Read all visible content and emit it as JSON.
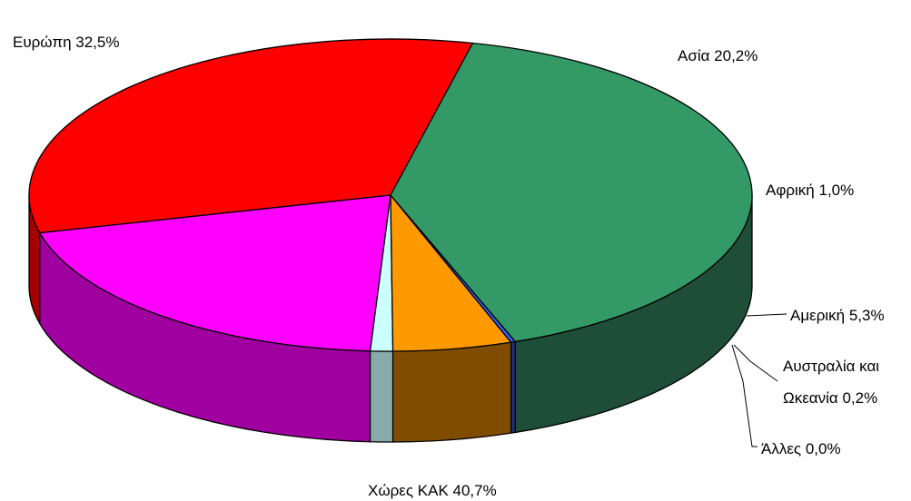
{
  "chart_data": {
    "type": "pie",
    "style": "3d",
    "title": "",
    "slices": [
      {
        "id": "europe",
        "label": "Ευρώπη 32,5%",
        "value": 32.5,
        "color": "#ff0000",
        "side_color": "#a50000"
      },
      {
        "id": "asia",
        "label": "Ασία 20,2%",
        "value": 20.2,
        "color": "#ff00ff",
        "side_color": "#a000a0"
      },
      {
        "id": "africa",
        "label": "Αφρική 1,0%",
        "value": 1.0,
        "color": "#ccffff",
        "side_color": "#88aaaa"
      },
      {
        "id": "america",
        "label": "Αμερική 5,3%",
        "value": 5.3,
        "color": "#ff9900",
        "side_color": "#804d00"
      },
      {
        "id": "australia",
        "label_lines": [
          "Αυστραλία και",
          "Ωκεανία 0,2%"
        ],
        "value": 0.2,
        "color": "#3366ff",
        "side_color": "#1a337f"
      },
      {
        "id": "other",
        "label": "Άλλες 0,0%",
        "value": 0.0,
        "color": "#000000",
        "side_color": "#000000"
      },
      {
        "id": "cis",
        "label": "Χώρες ΚΑΚ 40,7%",
        "value": 40.7,
        "color": "#339966",
        "side_color": "#1e4d38"
      }
    ]
  }
}
